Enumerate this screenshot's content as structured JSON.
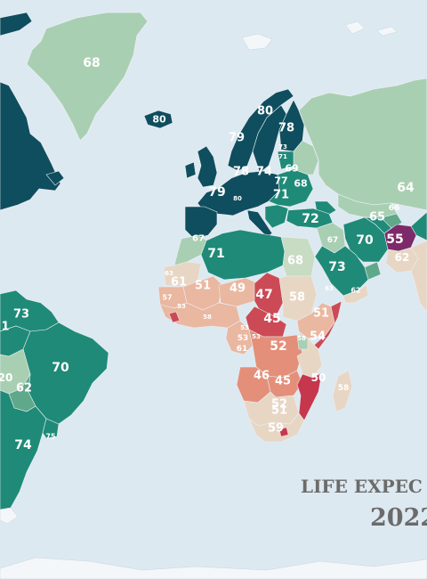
{
  "title_line1": "LIFE EXPEC",
  "title_line2": "2022",
  "colors": {
    "ocean": "#dde9f1",
    "very_high": "#0f4e5e",
    "high": "#1f8a78",
    "mid_high": "#5fa88a",
    "mid": "#a9cfb2",
    "light_green": "#c7dcc2",
    "neutral": "#e8d6c4",
    "peach": "#eab7a0",
    "salmon": "#e48f7a",
    "red": "#cc4a55",
    "crimson": "#c6374e",
    "purple": "#7d2a6a",
    "ice": "#f4f7f9"
  },
  "labels": [
    {
      "id": "greenland",
      "text": "68",
      "size": 14,
      "tone": "light"
    },
    {
      "id": "iceland",
      "text": "80",
      "size": 11,
      "tone": "light"
    },
    {
      "id": "norway",
      "text": "79",
      "size": 13,
      "tone": "light"
    },
    {
      "id": "sweden",
      "text": "80",
      "size": 13,
      "tone": "light"
    },
    {
      "id": "finland",
      "text": "78",
      "size": 13,
      "tone": "light"
    },
    {
      "id": "estonia",
      "text": "73",
      "size": 7,
      "tone": "light"
    },
    {
      "id": "latvia",
      "text": "71",
      "size": 7,
      "tone": "light"
    },
    {
      "id": "russia_w",
      "text": "69",
      "size": 11,
      "tone": "light"
    },
    {
      "id": "belarus",
      "text": "68",
      "size": 11,
      "tone": "light"
    },
    {
      "id": "uk",
      "text": "78",
      "size": 13,
      "tone": "light"
    },
    {
      "id": "germany",
      "text": "74",
      "size": 13,
      "tone": "light"
    },
    {
      "id": "poland",
      "text": "77",
      "size": 11,
      "tone": "light"
    },
    {
      "id": "ukraine",
      "text": "71",
      "size": 13,
      "tone": "light"
    },
    {
      "id": "france",
      "text": "79",
      "size": 14,
      "tone": "light"
    },
    {
      "id": "alps",
      "text": "80",
      "size": 7,
      "tone": "light"
    },
    {
      "id": "russia_e",
      "text": "64",
      "size": 14,
      "tone": "light"
    },
    {
      "id": "turkey",
      "text": "72",
      "size": 14,
      "tone": "light"
    },
    {
      "id": "kazakh_s",
      "text": "66",
      "size": 9,
      "tone": "light"
    },
    {
      "id": "turkmen",
      "text": "65",
      "size": 13,
      "tone": "light"
    },
    {
      "id": "iran",
      "text": "70",
      "size": 14,
      "tone": "light"
    },
    {
      "id": "afghan",
      "text": "55",
      "size": 14,
      "tone": "light"
    },
    {
      "id": "pakistan",
      "text": "62",
      "size": 12,
      "tone": "light"
    },
    {
      "id": "morocco",
      "text": "67",
      "size": 10,
      "tone": "light"
    },
    {
      "id": "algeria",
      "text": "71",
      "size": 14,
      "tone": "light"
    },
    {
      "id": "iraq",
      "text": "67",
      "size": 9,
      "tone": "light"
    },
    {
      "id": "egypt",
      "text": "68",
      "size": 13,
      "tone": "light"
    },
    {
      "id": "saudi",
      "text": "73",
      "size": 14,
      "tone": "light"
    },
    {
      "id": "oman",
      "text": "62",
      "size": 8,
      "tone": "light"
    },
    {
      "id": "mauritania",
      "text": "63",
      "size": 7,
      "tone": "light"
    },
    {
      "id": "senegal",
      "text": "61",
      "size": 13,
      "tone": "light"
    },
    {
      "id": "mali",
      "text": "51",
      "size": 13,
      "tone": "light"
    },
    {
      "id": "niger",
      "text": "49",
      "size": 13,
      "tone": "light"
    },
    {
      "id": "chad",
      "text": "47",
      "size": 14,
      "tone": "light"
    },
    {
      "id": "sudan",
      "text": "58",
      "size": 13,
      "tone": "light"
    },
    {
      "id": "yemen",
      "text": "63",
      "size": 7,
      "tone": "light"
    },
    {
      "id": "guinea",
      "text": "57",
      "size": 8,
      "tone": "light"
    },
    {
      "id": "sierra",
      "text": "53",
      "size": 7,
      "tone": "light"
    },
    {
      "id": "nigeria",
      "text": "53",
      "size": 7,
      "tone": "light"
    },
    {
      "id": "ghana",
      "text": "58",
      "size": 7,
      "tone": "light"
    },
    {
      "id": "car",
      "text": "45",
      "size": 14,
      "tone": "light"
    },
    {
      "id": "ethiopia",
      "text": "51",
      "size": 13,
      "tone": "light"
    },
    {
      "id": "cameroon",
      "text": "53",
      "size": 9,
      "tone": "light"
    },
    {
      "id": "gabon",
      "text": "61",
      "size": 9,
      "tone": "light"
    },
    {
      "id": "congo",
      "text": "53",
      "size": 7,
      "tone": "light"
    },
    {
      "id": "drc",
      "text": "52",
      "size": 14,
      "tone": "light"
    },
    {
      "id": "kenya",
      "text": "54",
      "size": 13,
      "tone": "light"
    },
    {
      "id": "uganda",
      "text": "58",
      "size": 7,
      "tone": "light"
    },
    {
      "id": "angola",
      "text": "46",
      "size": 13,
      "tone": "light"
    },
    {
      "id": "zambia",
      "text": "45",
      "size": 13,
      "tone": "light"
    },
    {
      "id": "mozambique",
      "text": "50",
      "size": 12,
      "tone": "light"
    },
    {
      "id": "madagascar",
      "text": "58",
      "size": 9,
      "tone": "light"
    },
    {
      "id": "namibia",
      "text": "52",
      "size": 13,
      "tone": "light"
    },
    {
      "id": "botswana",
      "text": "51",
      "size": 13,
      "tone": "light"
    },
    {
      "id": "south_africa",
      "text": "59",
      "size": 13,
      "tone": "light"
    },
    {
      "id": "caribbean",
      "text": "73",
      "size": 13,
      "tone": "light"
    },
    {
      "id": "colombia",
      "text": "1",
      "size": 13,
      "tone": "light"
    },
    {
      "id": "brazil",
      "text": "70",
      "size": 14,
      "tone": "light"
    },
    {
      "id": "peru",
      "text": "20",
      "size": 12,
      "tone": "light"
    },
    {
      "id": "bolivia",
      "text": "62",
      "size": 13,
      "tone": "light"
    },
    {
      "id": "argentina",
      "text": "74",
      "size": 14,
      "tone": "light"
    },
    {
      "id": "uruguay",
      "text": "75",
      "size": 8,
      "tone": "light"
    }
  ]
}
